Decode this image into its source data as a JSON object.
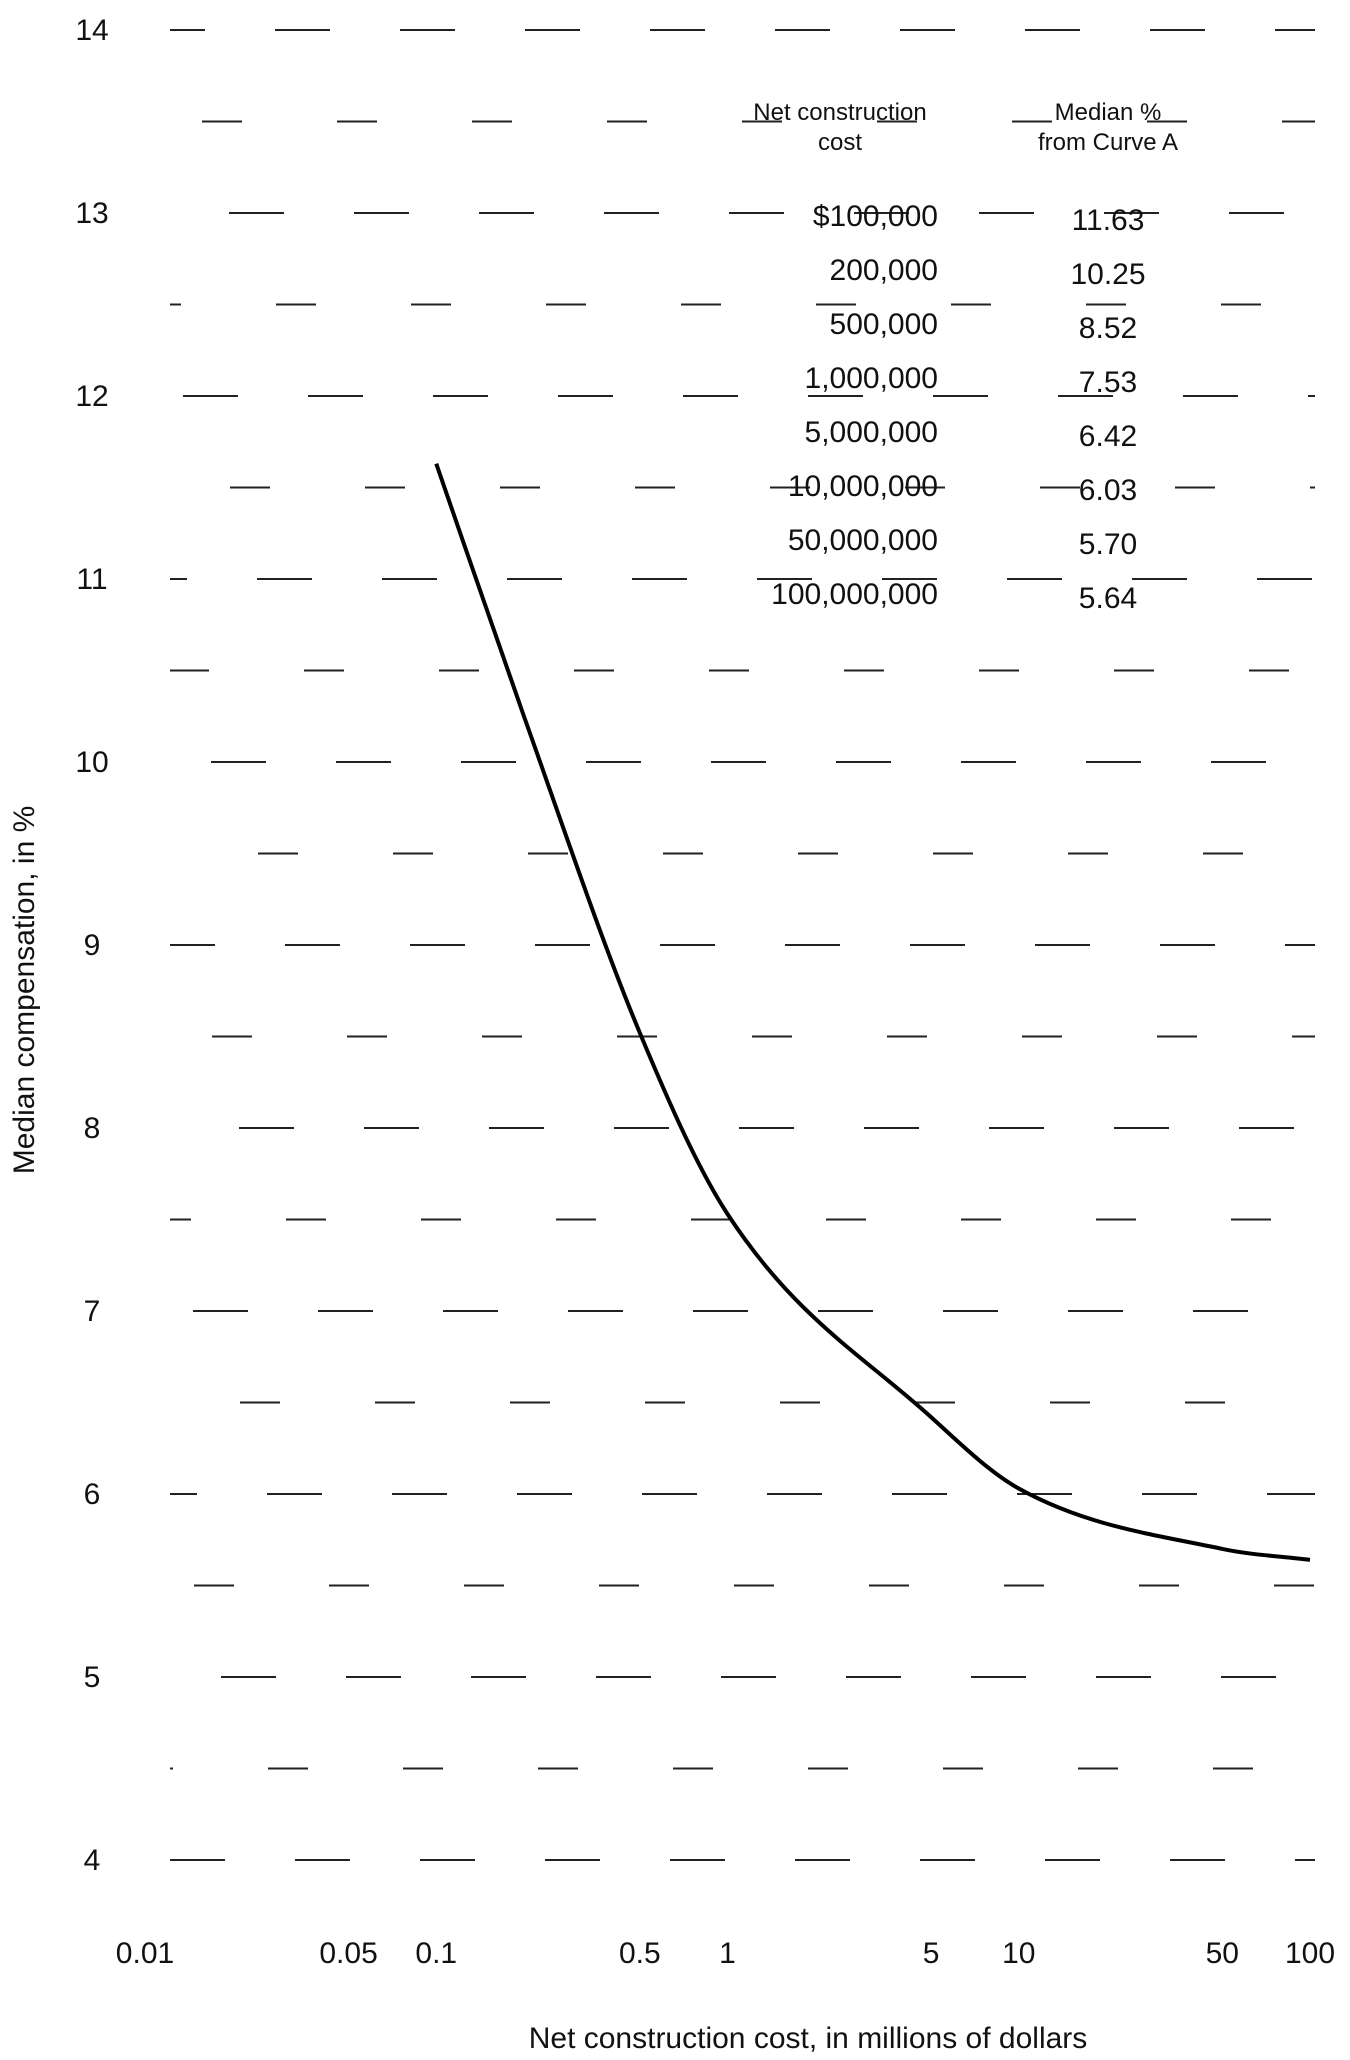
{
  "chart_data": {
    "type": "line",
    "title": "",
    "xlabel": "Net construction cost, in millions of dollars",
    "ylabel": "Median compensation, in %",
    "x_scale": "log",
    "xlim": [
      0.01,
      100
    ],
    "ylim": [
      3.5,
      14
    ],
    "x_ticks": [
      "0.01",
      "0.05",
      "0.1",
      "0.5",
      "1",
      "5",
      "10",
      "50",
      "100"
    ],
    "y_ticks": [
      "4",
      "5",
      "6",
      "7",
      "8",
      "9",
      "10",
      "11",
      "12",
      "13",
      "14"
    ],
    "grid": "dashed",
    "series": [
      {
        "x": [
          0.1,
          0.2,
          0.5,
          1,
          5,
          10,
          50,
          100
        ],
        "y": [
          11.63,
          10.25,
          8.52,
          7.53,
          6.42,
          6.03,
          5.7,
          5.64
        ]
      }
    ],
    "table": {
      "headers": [
        [
          "Net construction",
          "cost"
        ],
        [
          "Median %",
          "from Curve A"
        ]
      ],
      "rows": [
        [
          "$100,000",
          "11.63"
        ],
        [
          "200,000",
          "10.25"
        ],
        [
          "500,000",
          "8.52"
        ],
        [
          "1,000,000",
          "7.53"
        ],
        [
          "5,000,000",
          "6.42"
        ],
        [
          "10,000,000",
          "6.03"
        ],
        [
          "50,000,000",
          "5.70"
        ],
        [
          "100,000,000",
          "5.64"
        ]
      ]
    }
  }
}
